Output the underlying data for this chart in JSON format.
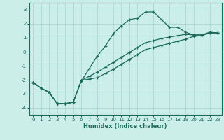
{
  "xlabel": "Humidex (Indice chaleur)",
  "background_color": "#cceee8",
  "grid_color": "#aad8d2",
  "line_color": "#1a6b5a",
  "xlim": [
    -0.5,
    23.5
  ],
  "ylim": [
    -4.5,
    3.5
  ],
  "yticks": [
    -4,
    -3,
    -2,
    -1,
    0,
    1,
    2,
    3
  ],
  "xticks": [
    0,
    1,
    2,
    3,
    4,
    5,
    6,
    7,
    8,
    9,
    10,
    11,
    12,
    13,
    14,
    15,
    16,
    17,
    18,
    19,
    20,
    21,
    22,
    23
  ],
  "curve1_x": [
    0,
    1,
    2,
    3,
    4,
    5,
    6,
    7,
    8,
    9,
    10,
    11,
    12,
    13,
    14,
    15,
    16,
    17,
    18,
    19,
    20,
    21,
    22,
    23
  ],
  "curve1_y": [
    -2.2,
    -2.6,
    -2.9,
    -3.7,
    -3.7,
    -3.6,
    -2.1,
    -1.2,
    -0.3,
    0.4,
    1.3,
    1.85,
    2.3,
    2.4,
    2.85,
    2.85,
    2.3,
    1.75,
    1.75,
    1.4,
    1.2,
    1.2,
    1.4,
    1.35
  ],
  "curve2_x": [
    0,
    1,
    2,
    3,
    4,
    5,
    6,
    7,
    8,
    9,
    10,
    11,
    12,
    13,
    14,
    15,
    16,
    17,
    18,
    19,
    20,
    21,
    22,
    23
  ],
  "curve2_y": [
    -2.2,
    -2.6,
    -2.9,
    -3.7,
    -3.7,
    -3.6,
    -2.05,
    -1.75,
    -1.45,
    -1.1,
    -0.75,
    -0.4,
    -0.05,
    0.3,
    0.65,
    0.8,
    0.95,
    1.05,
    1.15,
    1.25,
    1.2,
    1.2,
    1.35,
    1.35
  ],
  "curve3_x": [
    0,
    1,
    2,
    3,
    4,
    5,
    6,
    7,
    8,
    9,
    10,
    11,
    12,
    13,
    14,
    15,
    16,
    17,
    18,
    19,
    20,
    21,
    22,
    23
  ],
  "curve3_y": [
    -2.2,
    -2.6,
    -2.9,
    -3.7,
    -3.7,
    -3.6,
    -2.05,
    -1.95,
    -1.85,
    -1.55,
    -1.25,
    -0.9,
    -0.55,
    -0.2,
    0.15,
    0.3,
    0.45,
    0.6,
    0.75,
    0.9,
    1.1,
    1.15,
    1.35,
    1.35
  ]
}
